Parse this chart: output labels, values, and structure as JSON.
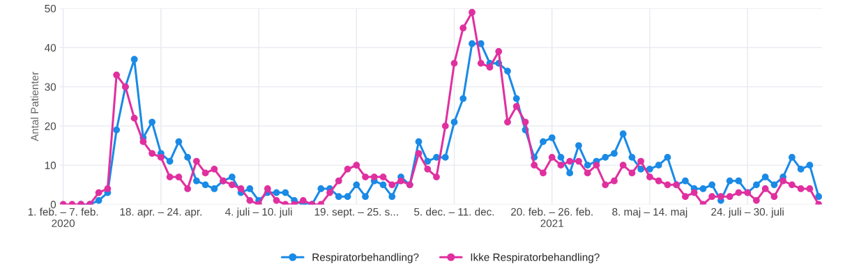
{
  "chart_data": {
    "type": "line",
    "ylabel": "Antal Patienter",
    "categories": [
      "1. feb. – 7. feb.\n2020",
      null,
      null,
      null,
      null,
      null,
      null,
      null,
      null,
      null,
      null,
      "18. apr. – 24. apr.",
      null,
      null,
      null,
      null,
      null,
      null,
      null,
      null,
      null,
      null,
      "4. juli – 10. juli",
      null,
      null,
      null,
      null,
      null,
      null,
      null,
      null,
      null,
      null,
      "19. sept. – 25. s...",
      null,
      null,
      null,
      null,
      null,
      null,
      null,
      null,
      null,
      null,
      "5. dec. – 11. dec.",
      null,
      null,
      null,
      null,
      null,
      null,
      null,
      null,
      null,
      null,
      "20. feb. – 26. feb.\n2021",
      null,
      null,
      null,
      null,
      null,
      null,
      null,
      null,
      null,
      null,
      "8. maj – 14. maj",
      null,
      null,
      null,
      null,
      null,
      null,
      null,
      null,
      null,
      null,
      "24. juli – 30. juli",
      null,
      null,
      null,
      null,
      null,
      null,
      null,
      null
    ],
    "series": [
      {
        "name": "Respiratorbehandling?",
        "color": "#1a8ae6",
        "values": [
          null,
          null,
          0,
          0,
          1,
          3,
          19,
          30,
          37,
          17,
          21,
          13,
          11,
          16,
          12,
          6,
          5,
          4,
          6,
          7,
          3,
          4,
          1,
          3,
          3,
          3,
          1,
          0,
          0,
          4,
          4,
          2,
          2,
          5,
          2,
          6,
          5,
          2,
          7,
          5,
          16,
          11,
          12,
          12,
          21,
          27,
          41,
          41,
          36,
          36,
          34,
          27,
          19,
          12,
          16,
          17,
          12,
          8,
          15,
          10,
          11,
          12,
          13,
          18,
          12,
          9,
          9,
          10,
          12,
          5,
          6,
          4,
          4,
          5,
          1,
          6,
          6,
          3,
          5,
          7,
          5,
          7,
          12,
          9,
          10,
          2
        ]
      },
      {
        "name": "Ikke Respiratorbehandling?",
        "color": "#e0309f",
        "values": [
          0,
          0,
          0,
          0,
          3,
          4,
          33,
          30,
          22,
          16,
          13,
          12,
          7,
          7,
          4,
          11,
          8,
          9,
          6,
          5,
          4,
          1,
          0,
          4,
          1,
          0,
          0,
          1,
          0,
          0,
          3,
          6,
          9,
          10,
          7,
          7,
          7,
          5,
          6,
          5,
          13,
          9,
          7,
          20,
          36,
          45,
          49,
          36,
          35,
          39,
          21,
          25,
          21,
          10,
          8,
          12,
          10,
          11,
          11,
          8,
          10,
          5,
          6,
          10,
          8,
          11,
          7,
          6,
          5,
          5,
          2,
          3,
          0,
          2,
          2,
          2,
          3,
          3,
          1,
          4,
          2,
          6,
          5,
          4,
          4,
          0
        ]
      }
    ],
    "ylim": [
      0,
      50
    ],
    "yticks": [
      0,
      10,
      20,
      30,
      40,
      50
    ],
    "grid": true,
    "legend": "bottom",
    "marker": "circle",
    "line_style": "solid"
  }
}
